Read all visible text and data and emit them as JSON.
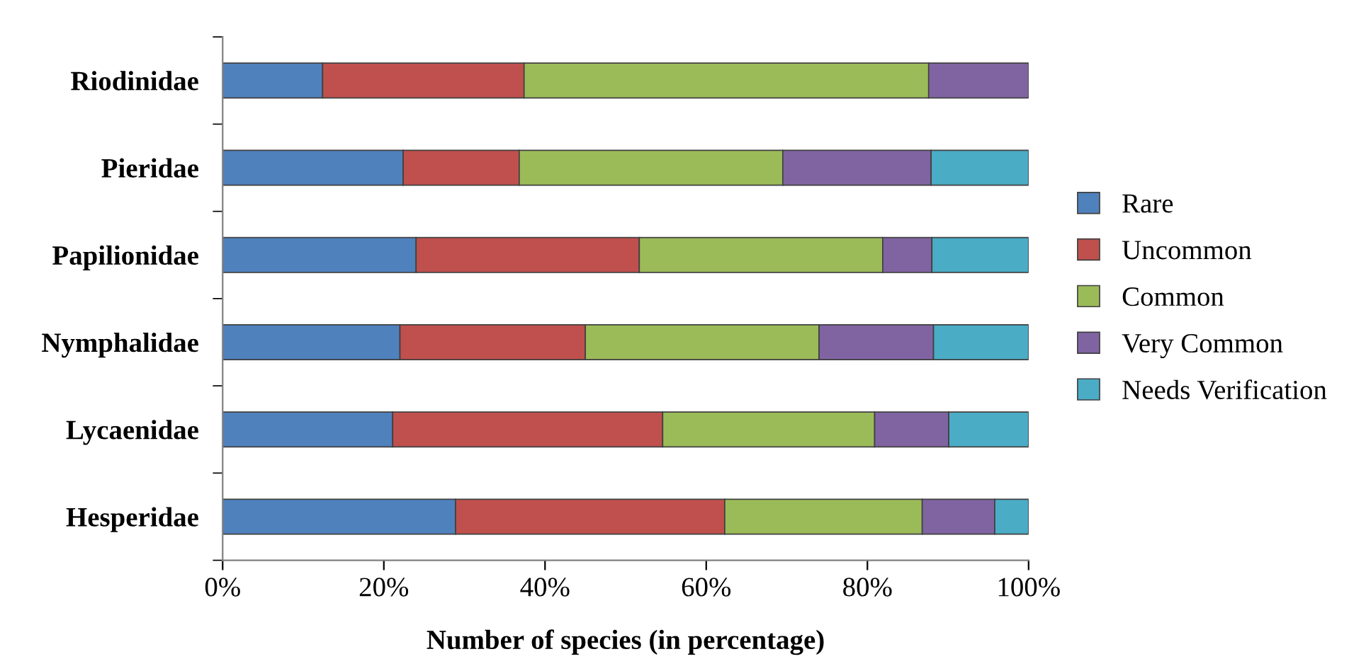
{
  "chart_data": {
    "type": "bar",
    "orientation": "horizontal",
    "stacked": true,
    "xlabel": "Number of species (in percentage)",
    "categories": [
      "Riodinidae",
      "Pieridae",
      "Papilionidae",
      "Nymphalidae",
      "Lycaenidae",
      "Hesperidae"
    ],
    "series": [
      {
        "name": "Rare",
        "color": "#4f81bd",
        "values": [
          12.4,
          22.4,
          24.0,
          22.0,
          21.1,
          28.9
        ]
      },
      {
        "name": "Uncommon",
        "color": "#c0504d",
        "values": [
          25.0,
          14.4,
          27.7,
          23.0,
          33.5,
          33.4
        ]
      },
      {
        "name": "Common",
        "color": "#9bbb59",
        "values": [
          50.2,
          32.7,
          30.2,
          29.0,
          26.3,
          24.5
        ]
      },
      {
        "name": "Very Common",
        "color": "#8064a2",
        "values": [
          12.4,
          18.4,
          6.1,
          14.2,
          9.2,
          9.0
        ]
      },
      {
        "name": "Needs Verification",
        "color": "#4bacc6",
        "values": [
          null,
          12.1,
          12.0,
          11.8,
          9.9,
          4.2
        ]
      }
    ],
    "xlim": [
      0,
      100
    ],
    "xticks": [
      {
        "value": 0,
        "label": "0%"
      },
      {
        "value": 20,
        "label": "20%"
      },
      {
        "value": 40,
        "label": "40%"
      },
      {
        "value": 60,
        "label": "60%"
      },
      {
        "value": 80,
        "label": "80%"
      },
      {
        "value": 100,
        "label": "100%"
      }
    ],
    "grid": false,
    "legend": "right"
  }
}
